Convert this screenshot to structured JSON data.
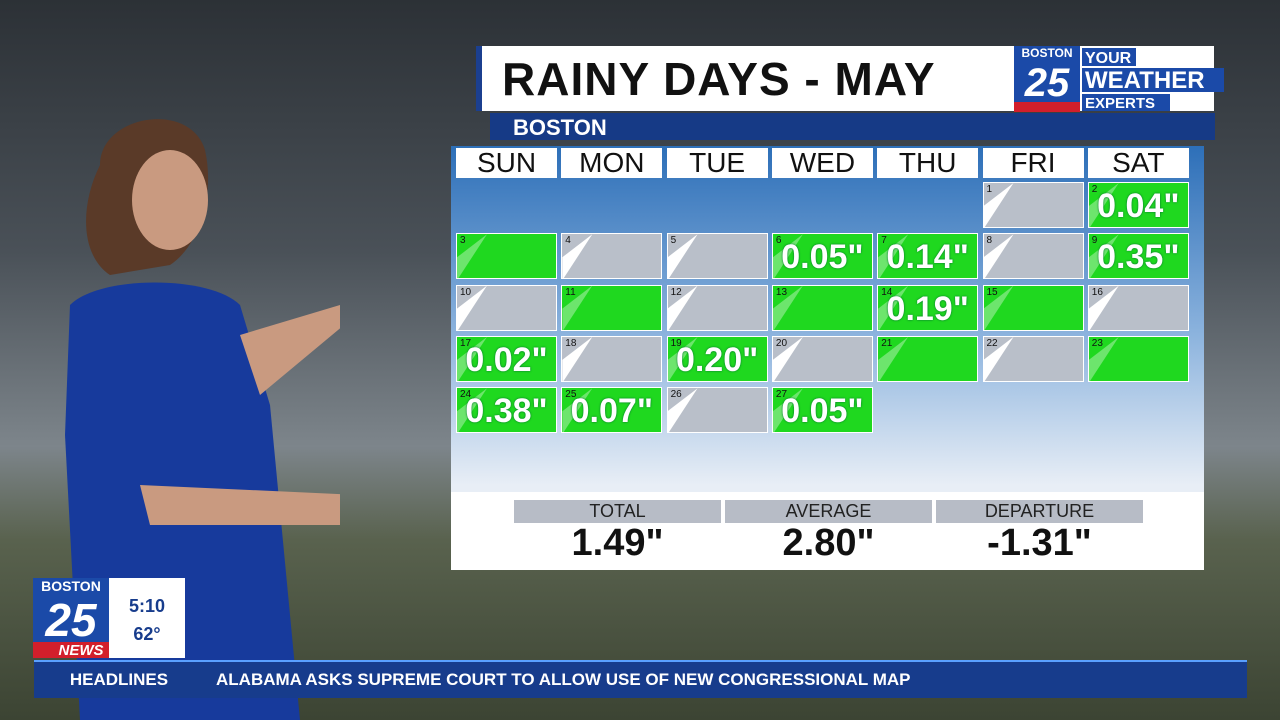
{
  "header": {
    "title": "RAINY DAYS - MAY",
    "location": "BOSTON"
  },
  "logo": {
    "top": "BOSTON",
    "number": "25",
    "line1": "YOUR",
    "line2": "WEATHER",
    "line3": "EXPERTS"
  },
  "calendar": {
    "weekdays": [
      "SUN",
      "MON",
      "TUE",
      "WED",
      "THU",
      "FRI",
      "SAT"
    ],
    "weeks": [
      [
        null,
        null,
        null,
        null,
        null,
        {
          "day": 1,
          "rain": false
        },
        {
          "day": 2,
          "rain": true,
          "amount": "0.04\""
        }
      ],
      [
        {
          "day": 3,
          "rain": true
        },
        {
          "day": 4,
          "rain": false
        },
        {
          "day": 5,
          "rain": false
        },
        {
          "day": 6,
          "rain": true,
          "amount": "0.05\""
        },
        {
          "day": 7,
          "rain": true,
          "amount": "0.14\""
        },
        {
          "day": 8,
          "rain": false
        },
        {
          "day": 9,
          "rain": true,
          "amount": "0.35\""
        }
      ],
      [
        {
          "day": 10,
          "rain": false
        },
        {
          "day": 11,
          "rain": true
        },
        {
          "day": 12,
          "rain": false
        },
        {
          "day": 13,
          "rain": true
        },
        {
          "day": 14,
          "rain": true,
          "amount": "0.19\""
        },
        {
          "day": 15,
          "rain": true
        },
        {
          "day": 16,
          "rain": false
        }
      ],
      [
        {
          "day": 17,
          "rain": true,
          "amount": "0.02\""
        },
        {
          "day": 18,
          "rain": false
        },
        {
          "day": 19,
          "rain": true,
          "amount": "0.20\""
        },
        {
          "day": 20,
          "rain": false
        },
        {
          "day": 21,
          "rain": true
        },
        {
          "day": 22,
          "rain": false
        },
        {
          "day": 23,
          "rain": true
        }
      ],
      [
        {
          "day": 24,
          "rain": true,
          "amount": "0.38\""
        },
        {
          "day": 25,
          "rain": true,
          "amount": "0.07\""
        },
        {
          "day": 26,
          "rain": false
        },
        {
          "day": 27,
          "rain": true,
          "amount": "0.05\""
        }
      ]
    ],
    "colors": {
      "rain": "#1fd81f",
      "dry": "#b9bfc9"
    }
  },
  "stats": [
    {
      "label": "TOTAL",
      "value": "1.49\""
    },
    {
      "label": "AVERAGE",
      "value": "2.80\""
    },
    {
      "label": "DEPARTURE",
      "value": "-1.31\""
    }
  ],
  "station_bug": {
    "top": "BOSTON",
    "number": "25",
    "bottom": "NEWS",
    "time": "5:10",
    "temperature": "62°"
  },
  "ticker": {
    "label": "HEADLINES",
    "text": "ALABAMA ASKS SUPREME COURT TO ALLOW USE OF NEW CONGRESSIONAL MAP"
  }
}
